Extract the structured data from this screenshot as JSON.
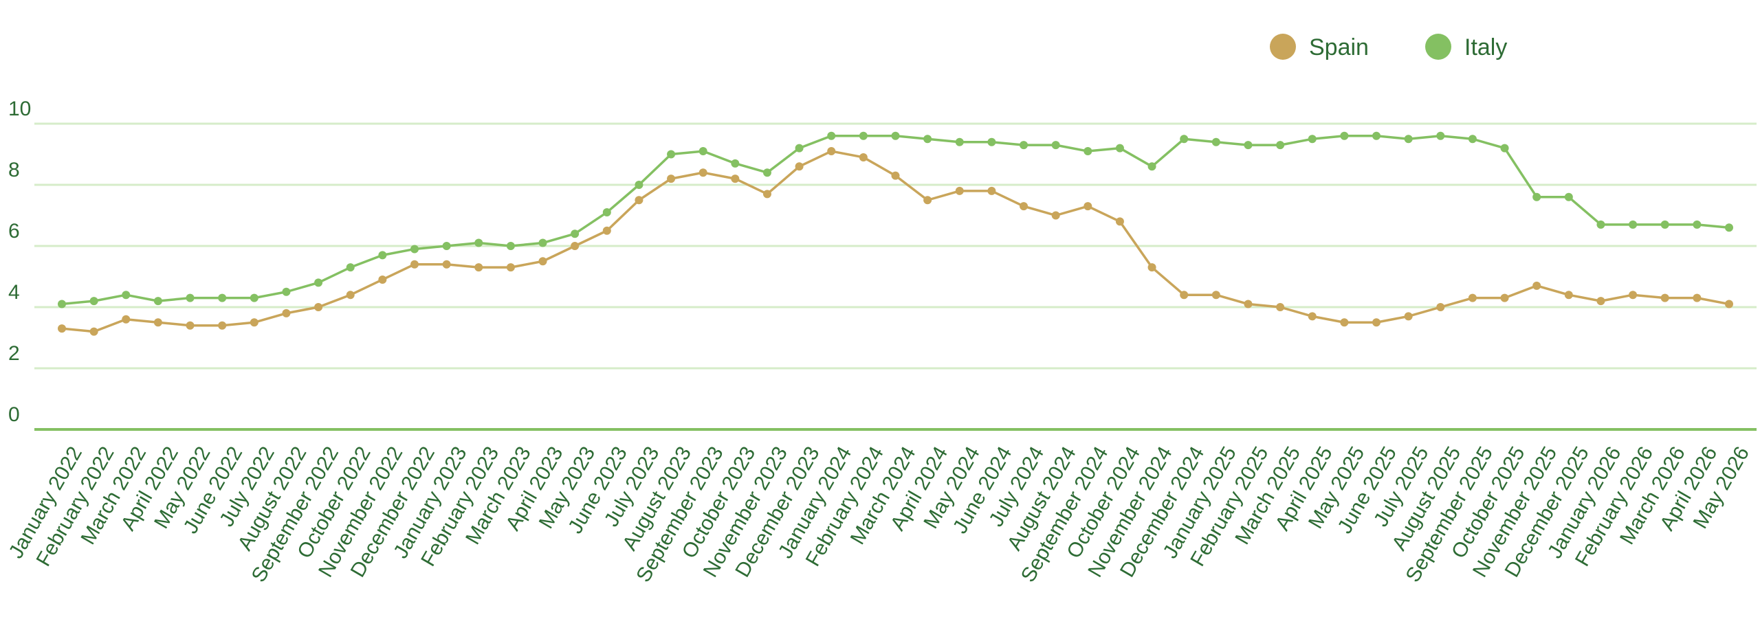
{
  "chart_data": {
    "type": "line",
    "title": "",
    "xlabel": "",
    "ylabel": "",
    "ylim": [
      0,
      10
    ],
    "yticks": [
      "0",
      "2",
      "4",
      "6",
      "8",
      "10"
    ],
    "grid": true,
    "legend_position": "top-right",
    "categories": [
      "January 2022",
      "February 2022",
      "March 2022",
      "April 2022",
      "May 2022",
      "June 2022",
      "July 2022",
      "August 2022",
      "September 2022",
      "October 2022",
      "November 2022",
      "December 2022",
      "January 2023",
      "February 2023",
      "March 2023",
      "April 2023",
      "May 2023",
      "June 2023",
      "July 2023",
      "August 2023",
      "September 2023",
      "October 2023",
      "November 2023",
      "December 2023",
      "January 2024",
      "February 2024",
      "March 2024",
      "April 2024",
      "May 2024",
      "June 2024",
      "July 2024",
      "August 2024",
      "September 2024",
      "October 2024",
      "November 2024",
      "December 2024",
      "January 2025",
      "February 2025",
      "March 2025",
      "April 2025",
      "May 2025",
      "June 2025",
      "July 2025",
      "August 2025",
      "September 2025",
      "October 2025",
      "November 2025",
      "December 2025",
      "January 2026",
      "February 2026",
      "March 2026",
      "April 2026",
      "May 2026"
    ],
    "series": [
      {
        "name": "Spain",
        "color": "#c9a55a",
        "values": [
          3.3,
          3.2,
          3.6,
          3.5,
          3.4,
          3.4,
          3.5,
          3.8,
          4.0,
          4.4,
          4.9,
          5.4,
          5.4,
          5.3,
          5.3,
          5.5,
          6.0,
          6.5,
          7.5,
          8.2,
          8.4,
          8.2,
          7.7,
          8.6,
          9.1,
          8.9,
          8.3,
          7.5,
          7.8,
          7.8,
          7.3,
          7.0,
          7.3,
          6.8,
          5.3,
          4.4,
          4.4,
          4.1,
          4.0,
          3.7,
          3.5,
          3.5,
          3.7,
          4.0,
          4.3,
          4.3,
          4.7,
          4.4,
          4.2,
          4.4,
          4.3,
          4.3,
          4.1
        ]
      },
      {
        "name": "Italy",
        "color": "#84c062",
        "values": [
          4.1,
          4.2,
          4.4,
          4.2,
          4.3,
          4.3,
          4.3,
          4.5,
          4.8,
          5.3,
          5.7,
          5.9,
          6.0,
          6.1,
          6.0,
          6.1,
          6.4,
          7.1,
          8.0,
          9.0,
          9.1,
          8.7,
          8.4,
          9.2,
          9.6,
          9.6,
          9.6,
          9.5,
          9.4,
          9.4,
          9.3,
          9.3,
          9.1,
          9.2,
          8.6,
          9.5,
          9.4,
          9.3,
          9.3,
          9.5,
          9.6,
          9.6,
          9.5,
          9.6,
          9.5,
          9.2,
          7.6,
          7.6,
          6.7,
          6.7,
          6.7,
          6.7,
          6.6
        ]
      }
    ]
  }
}
